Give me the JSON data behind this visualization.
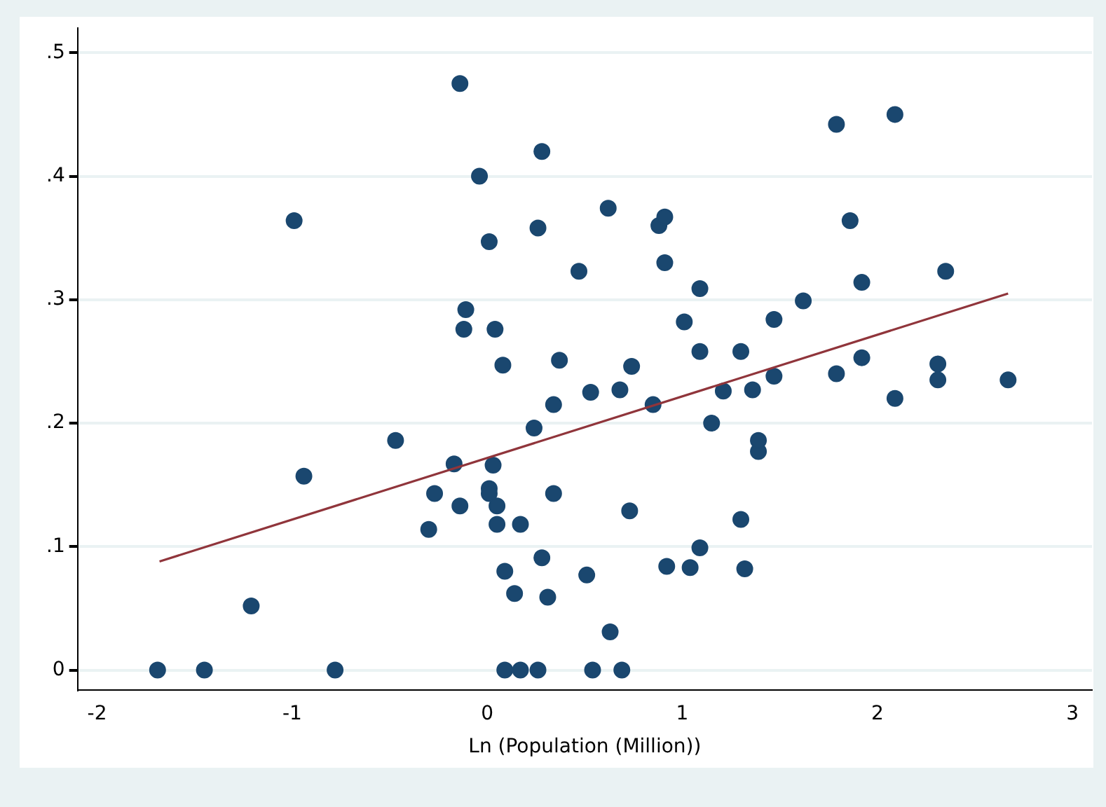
{
  "chart_data": {
    "type": "scatter",
    "xlabel": "Ln (Population (Million))",
    "xlim": [
      -2.1,
      3.1
    ],
    "xticks": [
      -2,
      -1,
      0,
      1,
      2,
      3
    ],
    "ylim": [
      -0.016,
      0.52
    ],
    "yticks": [
      {
        "value": 0,
        "label": "0"
      },
      {
        "value": 0.1,
        "label": ".1"
      },
      {
        "value": 0.2,
        "label": ".2"
      },
      {
        "value": 0.3,
        "label": ".3"
      },
      {
        "value": 0.4,
        "label": ".4"
      },
      {
        "value": 0.5,
        "label": ".5"
      }
    ],
    "grid": "y",
    "legend": false,
    "marker": "circle",
    "series": [
      {
        "color": "#1a476f",
        "x": [
          -1.69,
          -1.45,
          -0.78,
          0.09,
          0.17,
          0.26,
          0.54,
          0.69,
          -1.21,
          -0.99,
          -0.94,
          -0.47,
          -0.3,
          -0.27,
          -0.17,
          -0.14,
          -0.14,
          -0.12,
          -0.11,
          -0.04,
          0.01,
          0.01,
          0.01,
          0.03,
          0.04,
          0.05,
          0.05,
          0.08,
          0.09,
          0.14,
          0.17,
          0.24,
          0.26,
          0.28,
          0.28,
          0.31,
          0.34,
          0.34,
          0.37,
          0.47,
          0.51,
          0.53,
          0.62,
          0.63,
          0.68,
          0.73,
          0.74,
          0.85,
          0.88,
          0.91,
          0.91,
          0.92,
          1.01,
          1.04,
          1.09,
          1.09,
          1.09,
          1.15,
          1.21,
          1.3,
          1.3,
          1.32,
          1.36,
          1.39,
          1.39,
          1.47,
          1.47,
          1.62,
          1.79,
          1.79,
          1.86,
          1.92,
          1.92,
          2.09,
          2.09,
          2.31,
          2.31,
          2.35,
          2.67
        ],
        "values": [
          0,
          0,
          0,
          0,
          0,
          0,
          0,
          0,
          0.052,
          0.364,
          0.157,
          0.186,
          0.114,
          0.143,
          0.167,
          0.133,
          0.475,
          0.276,
          0.292,
          0.4,
          0.347,
          0.147,
          0.143,
          0.166,
          0.276,
          0.118,
          0.133,
          0.247,
          0.08,
          0.062,
          0.118,
          0.196,
          0.358,
          0.42,
          0.091,
          0.059,
          0.215,
          0.143,
          0.251,
          0.323,
          0.077,
          0.225,
          0.374,
          0.031,
          0.227,
          0.129,
          0.246,
          0.215,
          0.36,
          0.367,
          0.33,
          0.084,
          0.282,
          0.083,
          0.309,
          0.099,
          0.258,
          0.2,
          0.226,
          0.258,
          0.122,
          0.082,
          0.227,
          0.177,
          0.186,
          0.238,
          0.284,
          0.299,
          0.442,
          0.24,
          0.364,
          0.314,
          0.253,
          0.45,
          0.22,
          0.248,
          0.235,
          0.323,
          0.235
        ]
      },
      {
        "type": "line",
        "color": "#90353b",
        "marker": "none",
        "x": [
          -1.68,
          2.67
        ],
        "values": [
          0.088,
          0.305
        ]
      }
    ]
  }
}
